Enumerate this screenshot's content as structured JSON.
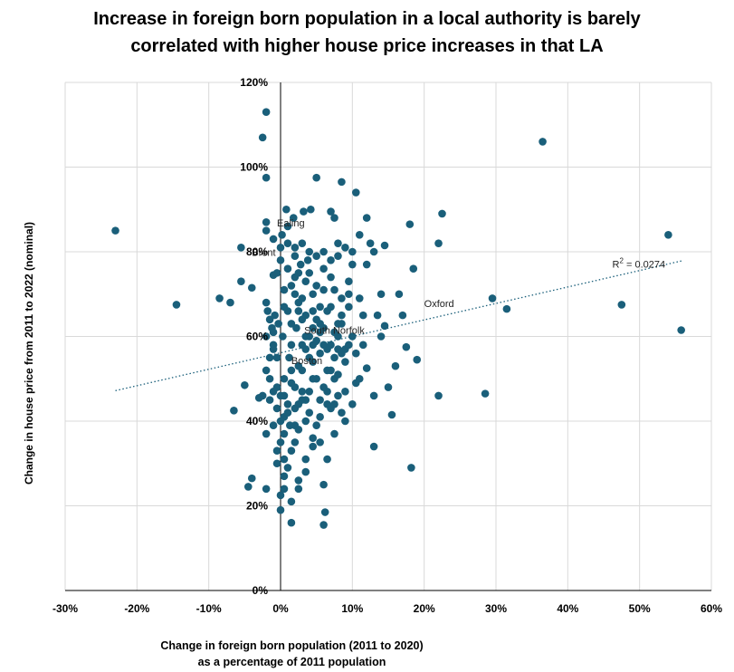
{
  "colors": {
    "point": "#1a5f7a",
    "trend": "#1a5f7a",
    "grid": "#d9d9d9",
    "axis": "#000000"
  },
  "chart_data": {
    "type": "scatter",
    "title_lines": [
      "Increase in foreign born population in a local authority is barely",
      "correlated with higher house price increases in that LA"
    ],
    "xlabel_lines": [
      "Change in foreign born population (2011 to 2020)",
      "as a percentage of 2011 population"
    ],
    "ylabel": "Change in house price from 2011 to 2022 (nominal)",
    "xlim": [
      -30,
      60
    ],
    "ylim": [
      0,
      120
    ],
    "x_ticks": [
      -30,
      -20,
      -10,
      0,
      10,
      20,
      30,
      40,
      50,
      60
    ],
    "x_tick_labels": [
      "-30%",
      "-20%",
      "-10%",
      "0%",
      "10%",
      "20%",
      "30%",
      "40%",
      "50%",
      "60%"
    ],
    "y_ticks": [
      0,
      20,
      40,
      60,
      80,
      100,
      120
    ],
    "y_tick_labels": [
      "0%",
      "20%",
      "40%",
      "60%",
      "80%",
      "100%",
      "120%"
    ],
    "grid": true,
    "trendline": {
      "type": "linear",
      "x": [
        -23,
        56
      ],
      "y": [
        47.2,
        77.9
      ],
      "r2_label": "R",
      "r2_sup": "2",
      "r2_value": " = 0.0274"
    },
    "annotations": [
      {
        "text": "Ealing",
        "x": -0.5,
        "y": 86
      },
      {
        "text": "Brent",
        "x": -4,
        "y": 79
      },
      {
        "text": "Oxford",
        "x": 20,
        "y": 67
      },
      {
        "text": "South Norfolk",
        "x": 3.3,
        "y": 60.6
      },
      {
        "text": "Boston",
        "x": 1.5,
        "y": 53.5
      }
    ],
    "points": [
      [
        -23,
        85
      ],
      [
        -14.5,
        67.5
      ],
      [
        -8.5,
        69
      ],
      [
        -7,
        68
      ],
      [
        -6.5,
        42.5
      ],
      [
        -5.5,
        81
      ],
      [
        -5.5,
        73
      ],
      [
        -5,
        48.5
      ],
      [
        -4.5,
        24.5
      ],
      [
        -4,
        71.5
      ],
      [
        -4,
        26.5
      ],
      [
        -3,
        45.5
      ],
      [
        -2.5,
        107
      ],
      [
        -2,
        113
      ],
      [
        -2,
        97.5
      ],
      [
        -2,
        87
      ],
      [
        -2,
        85
      ],
      [
        -2,
        68
      ],
      [
        -2,
        37
      ],
      [
        -2,
        24
      ],
      [
        -1.8,
        66
      ],
      [
        -1.5,
        64
      ],
      [
        -1.2,
        62
      ],
      [
        -1,
        74.5
      ],
      [
        -1,
        58
      ],
      [
        -1,
        47
      ],
      [
        -0.8,
        65
      ],
      [
        -0.5,
        75
      ],
      [
        -0.3,
        63
      ],
      [
        0,
        46
      ],
      [
        0,
        22.5
      ],
      [
        0,
        19
      ],
      [
        0.2,
        84
      ],
      [
        0.3,
        60
      ],
      [
        0.5,
        41
      ],
      [
        0.5,
        31
      ],
      [
        0.8,
        90
      ],
      [
        1,
        86
      ],
      [
        1,
        66
      ],
      [
        1,
        44
      ],
      [
        1.2,
        55
      ],
      [
        1.3,
        39
      ],
      [
        1.5,
        52
      ],
      [
        1.8,
        88
      ],
      [
        2,
        81
      ],
      [
        2,
        70
      ],
      [
        2,
        48
      ],
      [
        2,
        35
      ],
      [
        2.2,
        62
      ],
      [
        2.5,
        68
      ],
      [
        2.5,
        26
      ],
      [
        2.8,
        77
      ],
      [
        3,
        64
      ],
      [
        3,
        58
      ],
      [
        3,
        47
      ],
      [
        3.2,
        89.5
      ],
      [
        3.5,
        73
      ],
      [
        3.5,
        45
      ],
      [
        3.8,
        78
      ],
      [
        4,
        60
      ],
      [
        4,
        42
      ],
      [
        4.2,
        90
      ],
      [
        4.5,
        66
      ],
      [
        4.5,
        54
      ],
      [
        5,
        97.5
      ],
      [
        5,
        72
      ],
      [
        5,
        50
      ],
      [
        5.5,
        63
      ],
      [
        5.5,
        35
      ],
      [
        6,
        80
      ],
      [
        6,
        58
      ],
      [
        6,
        25
      ],
      [
        6,
        15.5
      ],
      [
        6.2,
        18.5
      ],
      [
        6.5,
        44
      ],
      [
        7,
        89.5
      ],
      [
        7,
        74
      ],
      [
        7,
        52
      ],
      [
        7.5,
        88
      ],
      [
        7.5,
        55
      ],
      [
        8,
        82
      ],
      [
        8,
        63
      ],
      [
        8,
        46
      ],
      [
        8.5,
        96.5
      ],
      [
        8.5,
        69
      ],
      [
        9,
        57
      ],
      [
        9,
        40
      ],
      [
        9.5,
        73
      ],
      [
        10,
        77
      ],
      [
        10,
        60
      ],
      [
        10.5,
        94
      ],
      [
        10.5,
        49
      ],
      [
        11,
        84
      ],
      [
        11,
        69
      ],
      [
        11.5,
        65
      ],
      [
        12,
        52.5
      ],
      [
        12,
        88
      ],
      [
        12.5,
        82
      ],
      [
        13,
        80
      ],
      [
        13,
        46
      ],
      [
        13.5,
        65
      ],
      [
        14,
        70
      ],
      [
        14.5,
        81.5
      ],
      [
        14.5,
        62.5
      ],
      [
        15,
        48
      ],
      [
        15.5,
        41.5
      ],
      [
        16,
        53
      ],
      [
        16.5,
        70
      ],
      [
        17,
        65
      ],
      [
        17.5,
        57.5
      ],
      [
        18,
        86.5
      ],
      [
        18.2,
        29
      ],
      [
        18.5,
        76
      ],
      [
        19,
        54.5
      ],
      [
        22,
        82
      ],
      [
        22,
        46
      ],
      [
        22.5,
        89
      ],
      [
        28.5,
        46.5
      ],
      [
        29.5,
        69
      ],
      [
        31.5,
        66.5
      ],
      [
        36.5,
        106
      ],
      [
        47.5,
        67.5
      ],
      [
        54,
        84
      ],
      [
        55.8,
        61.5
      ],
      [
        -1,
        57
      ],
      [
        -0.5,
        55
      ],
      [
        0.5,
        50
      ],
      [
        1.5,
        58
      ],
      [
        2.5,
        53
      ],
      [
        3.5,
        57
      ],
      [
        4.5,
        58
      ],
      [
        5.5,
        56
      ],
      [
        6.5,
        52
      ],
      [
        7.5,
        50
      ],
      [
        8.5,
        56
      ],
      [
        9.5,
        58
      ],
      [
        -1.5,
        50
      ],
      [
        -0.5,
        43
      ],
      [
        0.5,
        37
      ],
      [
        1.5,
        33
      ],
      [
        2.5,
        38
      ],
      [
        3.5,
        31
      ],
      [
        4.5,
        36
      ],
      [
        5.5,
        41
      ],
      [
        6.5,
        31
      ],
      [
        7.5,
        37
      ],
      [
        0,
        35
      ],
      [
        1,
        29
      ],
      [
        2,
        43
      ],
      [
        3,
        52
      ],
      [
        4,
        47
      ],
      [
        5,
        39
      ],
      [
        6,
        48
      ],
      [
        7,
        43
      ],
      [
        8,
        51
      ],
      [
        9,
        47
      ],
      [
        -2,
        60
      ],
      [
        -1,
        61
      ],
      [
        0.5,
        67
      ],
      [
        1.5,
        72
      ],
      [
        2.5,
        75
      ],
      [
        3.5,
        65
      ],
      [
        4.5,
        70
      ],
      [
        5.5,
        61
      ],
      [
        6.5,
        66
      ],
      [
        7.5,
        71
      ],
      [
        8.5,
        63
      ],
      [
        9.5,
        67
      ],
      [
        0,
        78
      ],
      [
        1,
        76
      ],
      [
        2,
        74
      ],
      [
        3,
        69
      ],
      [
        4,
        75
      ],
      [
        5,
        64
      ],
      [
        6,
        71
      ],
      [
        7,
        67
      ],
      [
        8,
        60
      ],
      [
        9,
        54
      ],
      [
        -1.5,
        55
      ],
      [
        -0.5,
        48
      ],
      [
        0.5,
        46
      ],
      [
        1.5,
        49
      ],
      [
        2.5,
        44
      ],
      [
        3.5,
        40
      ],
      [
        4.5,
        50
      ],
      [
        5.5,
        45
      ],
      [
        6.5,
        47
      ],
      [
        7.5,
        44
      ],
      [
        8.5,
        42
      ],
      [
        10,
        44
      ],
      [
        -0.5,
        33
      ],
      [
        0.5,
        27
      ],
      [
        1.5,
        21
      ],
      [
        2.5,
        24
      ],
      [
        3.5,
        28
      ],
      [
        4.5,
        34
      ],
      [
        0,
        40
      ],
      [
        1,
        42
      ],
      [
        2,
        39
      ],
      [
        3,
        45
      ],
      [
        4,
        55
      ],
      [
        5,
        59
      ],
      [
        6,
        62
      ],
      [
        7,
        58
      ],
      [
        8,
        57
      ],
      [
        11,
        50
      ],
      [
        13,
        34
      ],
      [
        14,
        60
      ],
      [
        12,
        77
      ],
      [
        10,
        80
      ],
      [
        9,
        81
      ],
      [
        8,
        79
      ],
      [
        7,
        78
      ],
      [
        6,
        76
      ],
      [
        5,
        79
      ],
      [
        4,
        80
      ],
      [
        3,
        82
      ],
      [
        2,
        79
      ],
      [
        1,
        82
      ],
      [
        0,
        81
      ],
      [
        -1,
        83
      ],
      [
        0.5,
        71
      ],
      [
        1.5,
        63
      ],
      [
        2.5,
        66
      ],
      [
        3.5,
        60
      ],
      [
        4.5,
        62
      ],
      [
        5.5,
        67
      ],
      [
        6.5,
        57
      ],
      [
        7.5,
        61
      ],
      [
        8.5,
        65
      ],
      [
        9.5,
        70
      ],
      [
        10.5,
        56
      ],
      [
        11.5,
        58
      ],
      [
        -2.5,
        46
      ],
      [
        -2,
        52
      ],
      [
        -1.5,
        45
      ],
      [
        -1,
        39
      ],
      [
        -0.5,
        30
      ],
      [
        0.5,
        24
      ],
      [
        1.5,
        16
      ]
    ]
  }
}
